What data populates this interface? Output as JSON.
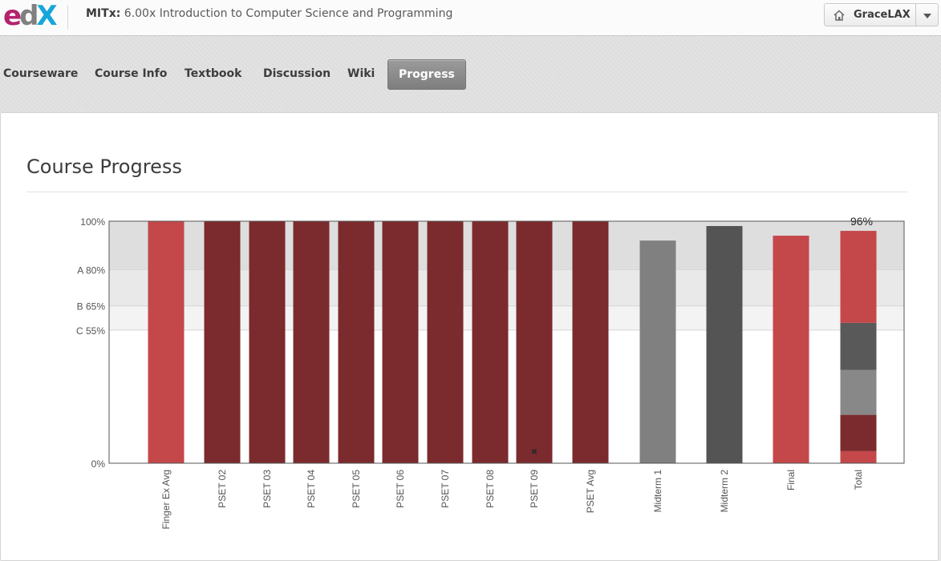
{
  "header": {
    "logo_text": {
      "e": "e",
      "d": "d",
      "x": "X"
    },
    "course_org": "MITx:",
    "course_name": "6.00x Introduction to Computer Science and Programming",
    "user_name": "GraceLAX",
    "home_icon": "home-icon",
    "dropdown_icon": "caret-down-icon"
  },
  "nav": {
    "tabs": [
      {
        "label": "Courseware"
      },
      {
        "label": "Course Info"
      },
      {
        "label": "Textbook"
      },
      {
        "label": "Discussion"
      },
      {
        "label": "Wiki"
      },
      {
        "label": "Progress",
        "active": true
      }
    ]
  },
  "main": {
    "title": "Course Progress"
  },
  "chart_data": {
    "type": "bar",
    "y_unit": "%",
    "ylim": [
      0,
      100
    ],
    "y_ticks": [
      {
        "value": 0,
        "label": "0%"
      },
      {
        "value": 55,
        "label": "C 55%"
      },
      {
        "value": 65,
        "label": "B 65%"
      },
      {
        "value": 80,
        "label": "A 80%"
      },
      {
        "value": 100,
        "label": "100%"
      }
    ],
    "grade_bands": [
      {
        "from": 80,
        "to": 100,
        "color": "#dedede"
      },
      {
        "from": 65,
        "to": 80,
        "color": "#e9e9e9"
      },
      {
        "from": 55,
        "to": 65,
        "color": "#f3f3f3"
      }
    ],
    "categories": [
      "Finger Ex Avg",
      "PSET 02",
      "PSET 03",
      "PSET 04",
      "PSET 05",
      "PSET 06",
      "PSET 07",
      "PSET 08",
      "PSET 09",
      "PSET Avg",
      "Midterm 1",
      "Midterm 2",
      "Final",
      "Total"
    ],
    "values": [
      100,
      100,
      100,
      100,
      100,
      100,
      100,
      100,
      100,
      100,
      92,
      98,
      94,
      96
    ],
    "colors": [
      "#c4474a",
      "#7b2a2d",
      "#7b2a2d",
      "#7b2a2d",
      "#7b2a2d",
      "#7b2a2d",
      "#7b2a2d",
      "#7b2a2d",
      "#7b2a2d",
      "#7b2a2d",
      "#808080",
      "#545454",
      "#c4474a",
      null
    ],
    "dropped_marker": {
      "category": "PSET 09",
      "value": 5,
      "symbol": "✖"
    },
    "total_stack": [
      {
        "value": 5,
        "color": "#c4474a"
      },
      {
        "value": 15,
        "color": "#7b2a2d"
      },
      {
        "value": 18.5,
        "color": "#888888"
      },
      {
        "value": 19.5,
        "color": "#595959"
      },
      {
        "value": 38,
        "color": "#c4474a"
      }
    ],
    "total_label": "96%",
    "colors_legend": {
      "red": "#c4474a",
      "dark_red": "#7b2a2d",
      "gray": "#808080",
      "dark_gray": "#545454"
    }
  }
}
